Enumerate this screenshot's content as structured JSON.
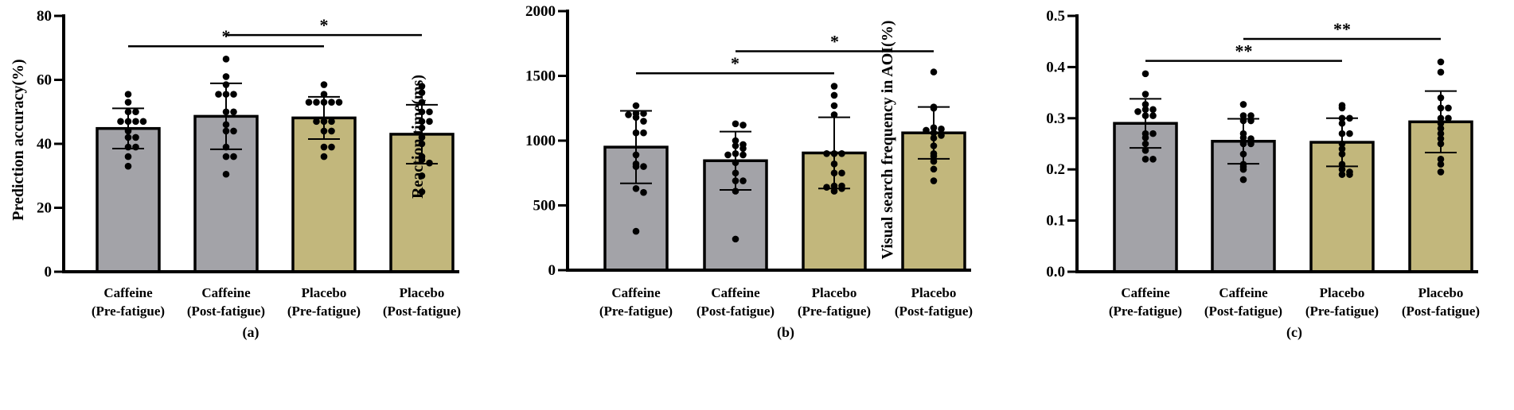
{
  "colors": {
    "caffeine": "#a3a3a8",
    "placebo": "#c2b77c",
    "ink": "#000000"
  },
  "chart_data": [
    {
      "type": "bar",
      "panel_label": "(a)",
      "ylabel": "Prediction accuracy(%)",
      "ylim": [
        0,
        80
      ],
      "yticks": [
        0,
        20,
        40,
        60,
        80
      ],
      "categories": [
        [
          "Caffeine",
          "(Pre-fatigue)"
        ],
        [
          "Caffeine",
          "(Post-fatigue)"
        ],
        [
          "Placebo",
          "(Pre-fatigue)"
        ],
        [
          "Placebo",
          "(Post-fatigue)"
        ]
      ],
      "groups": [
        "caffeine",
        "caffeine",
        "placebo",
        "placebo"
      ],
      "values": [
        44.8,
        48.6,
        48.1,
        43.0
      ],
      "sd": [
        6.3,
        10.3,
        6.6,
        9.2
      ],
      "points": [
        [
          55.5,
          53,
          50,
          50,
          47,
          47,
          47,
          47,
          44,
          42,
          42,
          39,
          39,
          36,
          33
        ],
        [
          66.5,
          61,
          58.5,
          55.5,
          55.5,
          55.5,
          50,
          50,
          46,
          44,
          44,
          39,
          36,
          36,
          30.5
        ],
        [
          58.5,
          55.5,
          53,
          53,
          53,
          53,
          53,
          47,
          47,
          47,
          44,
          44,
          39,
          39,
          36
        ],
        [
          58,
          56,
          53,
          50,
          50,
          47,
          47,
          45,
          42,
          40,
          36,
          35,
          34,
          30,
          25
        ]
      ],
      "significance": [
        {
          "from": 0,
          "to": 2,
          "y": 70.5,
          "label": "*"
        },
        {
          "from": 1,
          "to": 3,
          "y": 74,
          "label": "*"
        }
      ]
    },
    {
      "type": "bar",
      "panel_label": "(b)",
      "ylabel": "Reaction time(ms)",
      "ylim": [
        0,
        2000
      ],
      "yticks": [
        0,
        500,
        1000,
        1500,
        2000
      ],
      "categories": [
        [
          "Caffeine",
          "(Pre-fatigue)"
        ],
        [
          "Caffeine",
          "(Post-fatigue)"
        ],
        [
          "Placebo",
          "(Pre-fatigue)"
        ],
        [
          "Placebo",
          "(Post-fatigue)"
        ]
      ],
      "groups": [
        "caffeine",
        "caffeine",
        "placebo",
        "placebo"
      ],
      "values": [
        950,
        845,
        905,
        1060
      ],
      "sd": [
        280,
        225,
        275,
        200
      ],
      "points": [
        [
          1270,
          1210,
          1210,
          1200,
          1180,
          1150,
          1060,
          1060,
          890,
          820,
          800,
          800,
          630,
          600,
          300
        ],
        [
          1130,
          1120,
          1000,
          970,
          960,
          940,
          900,
          890,
          890,
          830,
          750,
          690,
          690,
          610,
          240
        ],
        [
          1420,
          1350,
          1270,
          1200,
          900,
          900,
          900,
          820,
          750,
          750,
          650,
          650,
          640,
          610,
          630
        ],
        [
          1530,
          1260,
          1250,
          1100,
          1090,
          1080,
          1060,
          1040,
          1020,
          960,
          900,
          880,
          840,
          780,
          690
        ]
      ],
      "significance": [
        {
          "from": 0,
          "to": 2,
          "y": 1520,
          "label": "*"
        },
        {
          "from": 1,
          "to": 3,
          "y": 1690,
          "label": "*"
        }
      ]
    },
    {
      "type": "bar",
      "panel_label": "(c)",
      "ylabel": "Visual search frequency in AOI(%)",
      "ylim": [
        0,
        0.5
      ],
      "yticks": [
        0.0,
        0.1,
        0.2,
        0.3,
        0.4,
        0.5
      ],
      "categories": [
        [
          "Caffeine",
          "(Pre-fatigue)"
        ],
        [
          "Caffeine",
          "(Post-fatigue)"
        ],
        [
          "Placebo",
          "(Pre-fatigue)"
        ],
        [
          "Placebo",
          "(Post-fatigue)"
        ]
      ],
      "groups": [
        "caffeine",
        "caffeine",
        "placebo",
        "placebo"
      ],
      "values": [
        0.29,
        0.255,
        0.253,
        0.293
      ],
      "sd": [
        0.048,
        0.044,
        0.047,
        0.06
      ],
      "points": [
        [
          0.387,
          0.347,
          0.327,
          0.317,
          0.317,
          0.313,
          0.305,
          0.305,
          0.27,
          0.27,
          0.262,
          0.25,
          0.237,
          0.22,
          0.22
        ],
        [
          0.327,
          0.305,
          0.305,
          0.295,
          0.295,
          0.27,
          0.262,
          0.26,
          0.25,
          0.25,
          0.23,
          0.21,
          0.205,
          0.2,
          0.18
        ],
        [
          0.325,
          0.32,
          0.3,
          0.3,
          0.29,
          0.27,
          0.27,
          0.25,
          0.24,
          0.23,
          0.21,
          0.2,
          0.19,
          0.19,
          0.195
        ],
        [
          0.41,
          0.39,
          0.34,
          0.32,
          0.32,
          0.3,
          0.3,
          0.29,
          0.28,
          0.27,
          0.26,
          0.25,
          0.22,
          0.21,
          0.195
        ]
      ],
      "significance": [
        {
          "from": 0,
          "to": 2,
          "y": 0.412,
          "label": "**"
        },
        {
          "from": 1,
          "to": 3,
          "y": 0.455,
          "label": "**"
        }
      ]
    }
  ]
}
